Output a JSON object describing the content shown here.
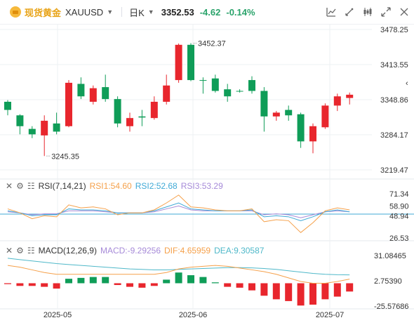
{
  "header": {
    "symbol_cn": "现货黄金",
    "symbol": "XAUUSD",
    "period": "日K",
    "price": "3352.53",
    "change": "-4.62",
    "change_pct": "-0.14%"
  },
  "tools": [
    "indicator-icon",
    "drawing-icon",
    "candle-style-icon",
    "fullscreen-icon",
    "settings-icon"
  ],
  "main_axis": {
    "labels": [
      "3478.25",
      "3413.55",
      "3348.86",
      "3284.17",
      "3219.47"
    ],
    "current_price": "3348.86",
    "high_label": "3452.37",
    "low_label": "3245.35",
    "collapse_glyph": "‹"
  },
  "rsi": {
    "title": "RSI(7,14,21)",
    "rsi1": "RSI1:54.60",
    "rsi2": "RSI2:52.68",
    "rsi3": "RSI3:53.29",
    "axis_labels": [
      "71.34",
      "58.90",
      "48.94",
      "26.53"
    ]
  },
  "macd": {
    "title": "MACD(12,26,9)",
    "macd": "MACD:-9.29256",
    "dif": "DIF:4.65959",
    "dea": "DEA:9.30587",
    "axis_labels": [
      "31.08465",
      "2.75390",
      "-25.57686"
    ]
  },
  "x_axis": [
    "2025-05",
    "2025-06",
    "2025-07"
  ],
  "colors": {
    "up": "#e8262d",
    "down": "#0f9d58",
    "rsi1": "#f5a04a",
    "rsi2": "#3fa9d6",
    "rsi3": "#a68ad8",
    "dif": "#f5a04a",
    "dea": "#4fb8c9",
    "gold": "#e8a317"
  },
  "chart_data": {
    "type": "candlestick",
    "ylim": [
      3219.47,
      3478.25
    ],
    "candles": [
      {
        "o": 3345,
        "c": 3330,
        "h": 3348,
        "l": 3320
      },
      {
        "o": 3320,
        "c": 3300,
        "h": 3322,
        "l": 3285
      },
      {
        "o": 3295,
        "c": 3285,
        "h": 3300,
        "l": 3278
      },
      {
        "o": 3283,
        "c": 3310,
        "h": 3320,
        "l": 3245
      },
      {
        "o": 3305,
        "c": 3290,
        "h": 3325,
        "l": 3285
      },
      {
        "o": 3300,
        "c": 3380,
        "h": 3385,
        "l": 3298
      },
      {
        "o": 3378,
        "c": 3355,
        "h": 3390,
        "l": 3350
      },
      {
        "o": 3345,
        "c": 3370,
        "h": 3375,
        "l": 3340
      },
      {
        "o": 3372,
        "c": 3350,
        "h": 3395,
        "l": 3345
      },
      {
        "o": 3350,
        "c": 3305,
        "h": 3355,
        "l": 3298
      },
      {
        "o": 3300,
        "c": 3315,
        "h": 3325,
        "l": 3290
      },
      {
        "o": 3318,
        "c": 3316,
        "h": 3330,
        "l": 3300
      },
      {
        "o": 3315,
        "c": 3345,
        "h": 3355,
        "l": 3312
      },
      {
        "o": 3345,
        "c": 3375,
        "h": 3395,
        "l": 3340
      },
      {
        "o": 3385,
        "c": 3450,
        "h": 3452.37,
        "l": 3380
      },
      {
        "o": 3450,
        "c": 3385,
        "h": 3453,
        "l": 3383
      },
      {
        "o": 3385,
        "c": 3384,
        "h": 3390,
        "l": 3360
      },
      {
        "o": 3388,
        "c": 3365,
        "h": 3395,
        "l": 3362
      },
      {
        "o": 3368,
        "c": 3355,
        "h": 3378,
        "l": 3345
      },
      {
        "o": 3365,
        "c": 3364,
        "h": 3368,
        "l": 3362
      },
      {
        "o": 3385,
        "c": 3365,
        "h": 3392,
        "l": 3360
      },
      {
        "o": 3365,
        "c": 3318,
        "h": 3372,
        "l": 3290
      },
      {
        "o": 3318,
        "c": 3325,
        "h": 3328,
        "l": 3310
      },
      {
        "o": 3330,
        "c": 3320,
        "h": 3338,
        "l": 3310
      },
      {
        "o": 3322,
        "c": 3272,
        "h": 3325,
        "l": 3260
      },
      {
        "o": 3272,
        "c": 3300,
        "h": 3305,
        "l": 3250
      },
      {
        "o": 3298,
        "c": 3338,
        "h": 3342,
        "l": 3295
      },
      {
        "o": 3338,
        "c": 3355,
        "h": 3360,
        "l": 3328
      },
      {
        "o": 3352,
        "c": 3358,
        "h": 3362,
        "l": 3340
      }
    ],
    "rsi": {
      "ylim": [
        26.53,
        71.34
      ],
      "rsi1": [
        56,
        52,
        46,
        49,
        48,
        60,
        57,
        58,
        56,
        50,
        52,
        52,
        55,
        62,
        70,
        58,
        57,
        55,
        54,
        54,
        56,
        43,
        45,
        44,
        32,
        42,
        54,
        57,
        55
      ],
      "rsi2": [
        54,
        52,
        49,
        50,
        50,
        56,
        55,
        55,
        54,
        52,
        52,
        52,
        54,
        58,
        62,
        56,
        55,
        54,
        54,
        54,
        55,
        48,
        49,
        48,
        44,
        48,
        53,
        55,
        53
      ],
      "rsi3": [
        53,
        52,
        50,
        51,
        51,
        54,
        54,
        54,
        53,
        52,
        52,
        52,
        53,
        56,
        59,
        55,
        54,
        54,
        54,
        54,
        54,
        50,
        51,
        50,
        47,
        50,
        53,
        54,
        53
      ]
    },
    "macd": {
      "ylim": [
        -25.57686,
        31.08465
      ],
      "dif": [
        20,
        18,
        15,
        12,
        10,
        10,
        10,
        10,
        10,
        10,
        10,
        10,
        10,
        12,
        16,
        18,
        19,
        20,
        19,
        17,
        15,
        13,
        10,
        6,
        2,
        0,
        0,
        2,
        4.65959
      ],
      "dea": [
        28,
        26.5,
        25,
        23.5,
        22,
        21,
        20,
        19,
        18,
        17,
        16,
        15.5,
        15,
        15,
        15.5,
        16,
        16.5,
        17,
        17.5,
        17.5,
        17.2,
        16.5,
        15.5,
        14,
        12.5,
        11,
        10,
        9.5,
        9.30587
      ],
      "hist": [
        -1,
        -3,
        -3,
        -4,
        -6,
        5,
        6,
        7,
        7,
        -2,
        -4,
        -5,
        -3,
        4,
        12,
        9,
        7,
        1,
        -4,
        -5,
        -8,
        -14,
        -18,
        -20,
        -25,
        -24,
        -18,
        -15,
        -9.29256
      ]
    }
  }
}
